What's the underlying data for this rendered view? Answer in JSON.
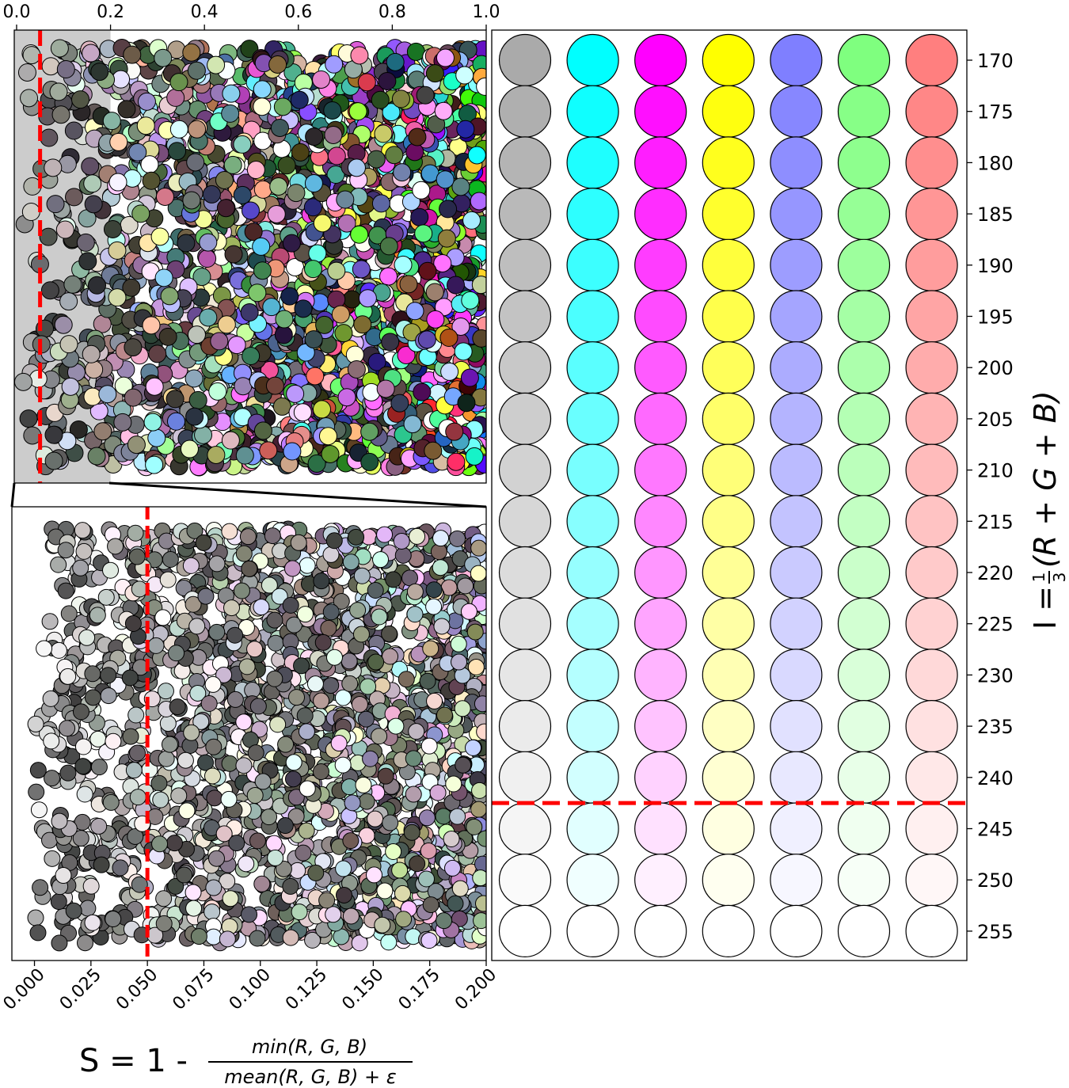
{
  "chart_data": [
    {
      "id": "top-scatter",
      "type": "scatter",
      "title": "",
      "xlim": [
        -0.005,
        1.0
      ],
      "ylim": [
        0,
        1
      ],
      "x_ticks": [
        "0.0",
        "0.2",
        "0.4",
        "0.6",
        "0.8",
        "1.0"
      ],
      "x_tick_values": [
        0.0,
        0.2,
        0.4,
        0.6,
        0.8,
        1.0
      ],
      "highlight_span": [
        -0.005,
        0.2
      ],
      "highlight_color": "#cccccc",
      "threshold_line": 0.05,
      "threshold_color": "#ff0000",
      "point_count": 2600,
      "description": "random colors plotted by saturation S"
    },
    {
      "id": "bottom-scatter",
      "type": "scatter",
      "xlim": [
        -0.01,
        0.2
      ],
      "ylim": [
        0,
        1
      ],
      "x_ticks": [
        "0.000",
        "0.025",
        "0.050",
        "0.075",
        "0.100",
        "0.125",
        "0.150",
        "0.175",
        "0.200"
      ],
      "x_tick_values": [
        0.0,
        0.025,
        0.05,
        0.075,
        0.1,
        0.125,
        0.15,
        0.175,
        0.2
      ],
      "threshold_line": 0.05,
      "threshold_color": "#ff0000",
      "point_count": 2400
    },
    {
      "id": "intensity-grid",
      "type": "scatter",
      "columns": [
        "gray",
        "cyan",
        "magenta",
        "yellow",
        "blue",
        "green",
        "red"
      ],
      "column_base_colors": [
        "#808080",
        "#00ffff",
        "#ff00ff",
        "#ffff00",
        "#7f7fff",
        "#7fff7f",
        "#ff7f7f"
      ],
      "intensity_levels": [
        170,
        175,
        180,
        185,
        190,
        195,
        200,
        205,
        210,
        215,
        220,
        225,
        230,
        235,
        240,
        245,
        250,
        255
      ],
      "y_ticks": [
        "170",
        "175",
        "180",
        "185",
        "190",
        "195",
        "200",
        "205",
        "210",
        "215",
        "220",
        "225",
        "230",
        "235",
        "240",
        "245",
        "250",
        "255"
      ],
      "threshold_line": 242.5,
      "threshold_color": "#ff0000"
    }
  ],
  "labels": {
    "x_s_prefix": "S = 1 -",
    "x_s_numerator": "min(R, G, B)",
    "x_s_denominator": "mean(R, G, B) + ε",
    "y_i_prefix": "I =",
    "y_i_frac_num": "1",
    "y_i_frac_den": "3",
    "y_i_body": "(R + G + B)"
  }
}
